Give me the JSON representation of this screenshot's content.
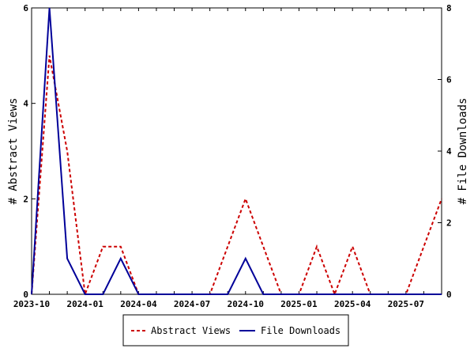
{
  "chart_data": {
    "type": "line",
    "x": [
      "2023-10",
      "2023-11",
      "2023-12",
      "2024-01",
      "2024-02",
      "2024-03",
      "2024-04",
      "2024-05",
      "2024-06",
      "2024-07",
      "2024-08",
      "2024-09",
      "2024-10",
      "2024-11",
      "2024-12",
      "2025-01",
      "2025-02",
      "2025-03",
      "2025-04",
      "2025-05",
      "2025-06",
      "2025-07",
      "2025-08",
      "2025-09"
    ],
    "x_tick_labels": [
      "2023-10",
      "2024-01",
      "2024-04",
      "2024-07",
      "2024-10",
      "2025-01",
      "2025-04",
      "2025-07"
    ],
    "series": [
      {
        "name": "Abstract Views",
        "axis": "left",
        "color": "#cc0000",
        "dash": "dashed",
        "values": [
          0,
          5,
          3,
          0,
          1,
          1,
          0,
          0,
          0,
          0,
          0,
          1,
          2,
          1,
          0,
          0,
          1,
          0,
          1,
          0,
          0,
          0,
          1,
          2
        ]
      },
      {
        "name": "File Downloads",
        "axis": "right",
        "color": "#000099",
        "dash": "solid",
        "values": [
          0,
          8,
          1,
          0,
          0,
          1,
          0,
          0,
          0,
          0,
          0,
          0,
          1,
          0,
          0,
          0,
          0,
          0,
          0,
          0,
          0,
          0,
          0,
          0
        ]
      }
    ],
    "ylabel_left": "# Abstract Views",
    "ylabel_right": "# File Downloads",
    "ylim_left": [
      0,
      6
    ],
    "ylim_right": [
      0,
      8
    ],
    "y_ticks_left": [
      "0",
      "2",
      "4",
      "6"
    ],
    "y_ticks_right": [
      "0",
      "2",
      "4",
      "6",
      "8"
    ],
    "legend_position": "bottom-center",
    "grid": false
  }
}
